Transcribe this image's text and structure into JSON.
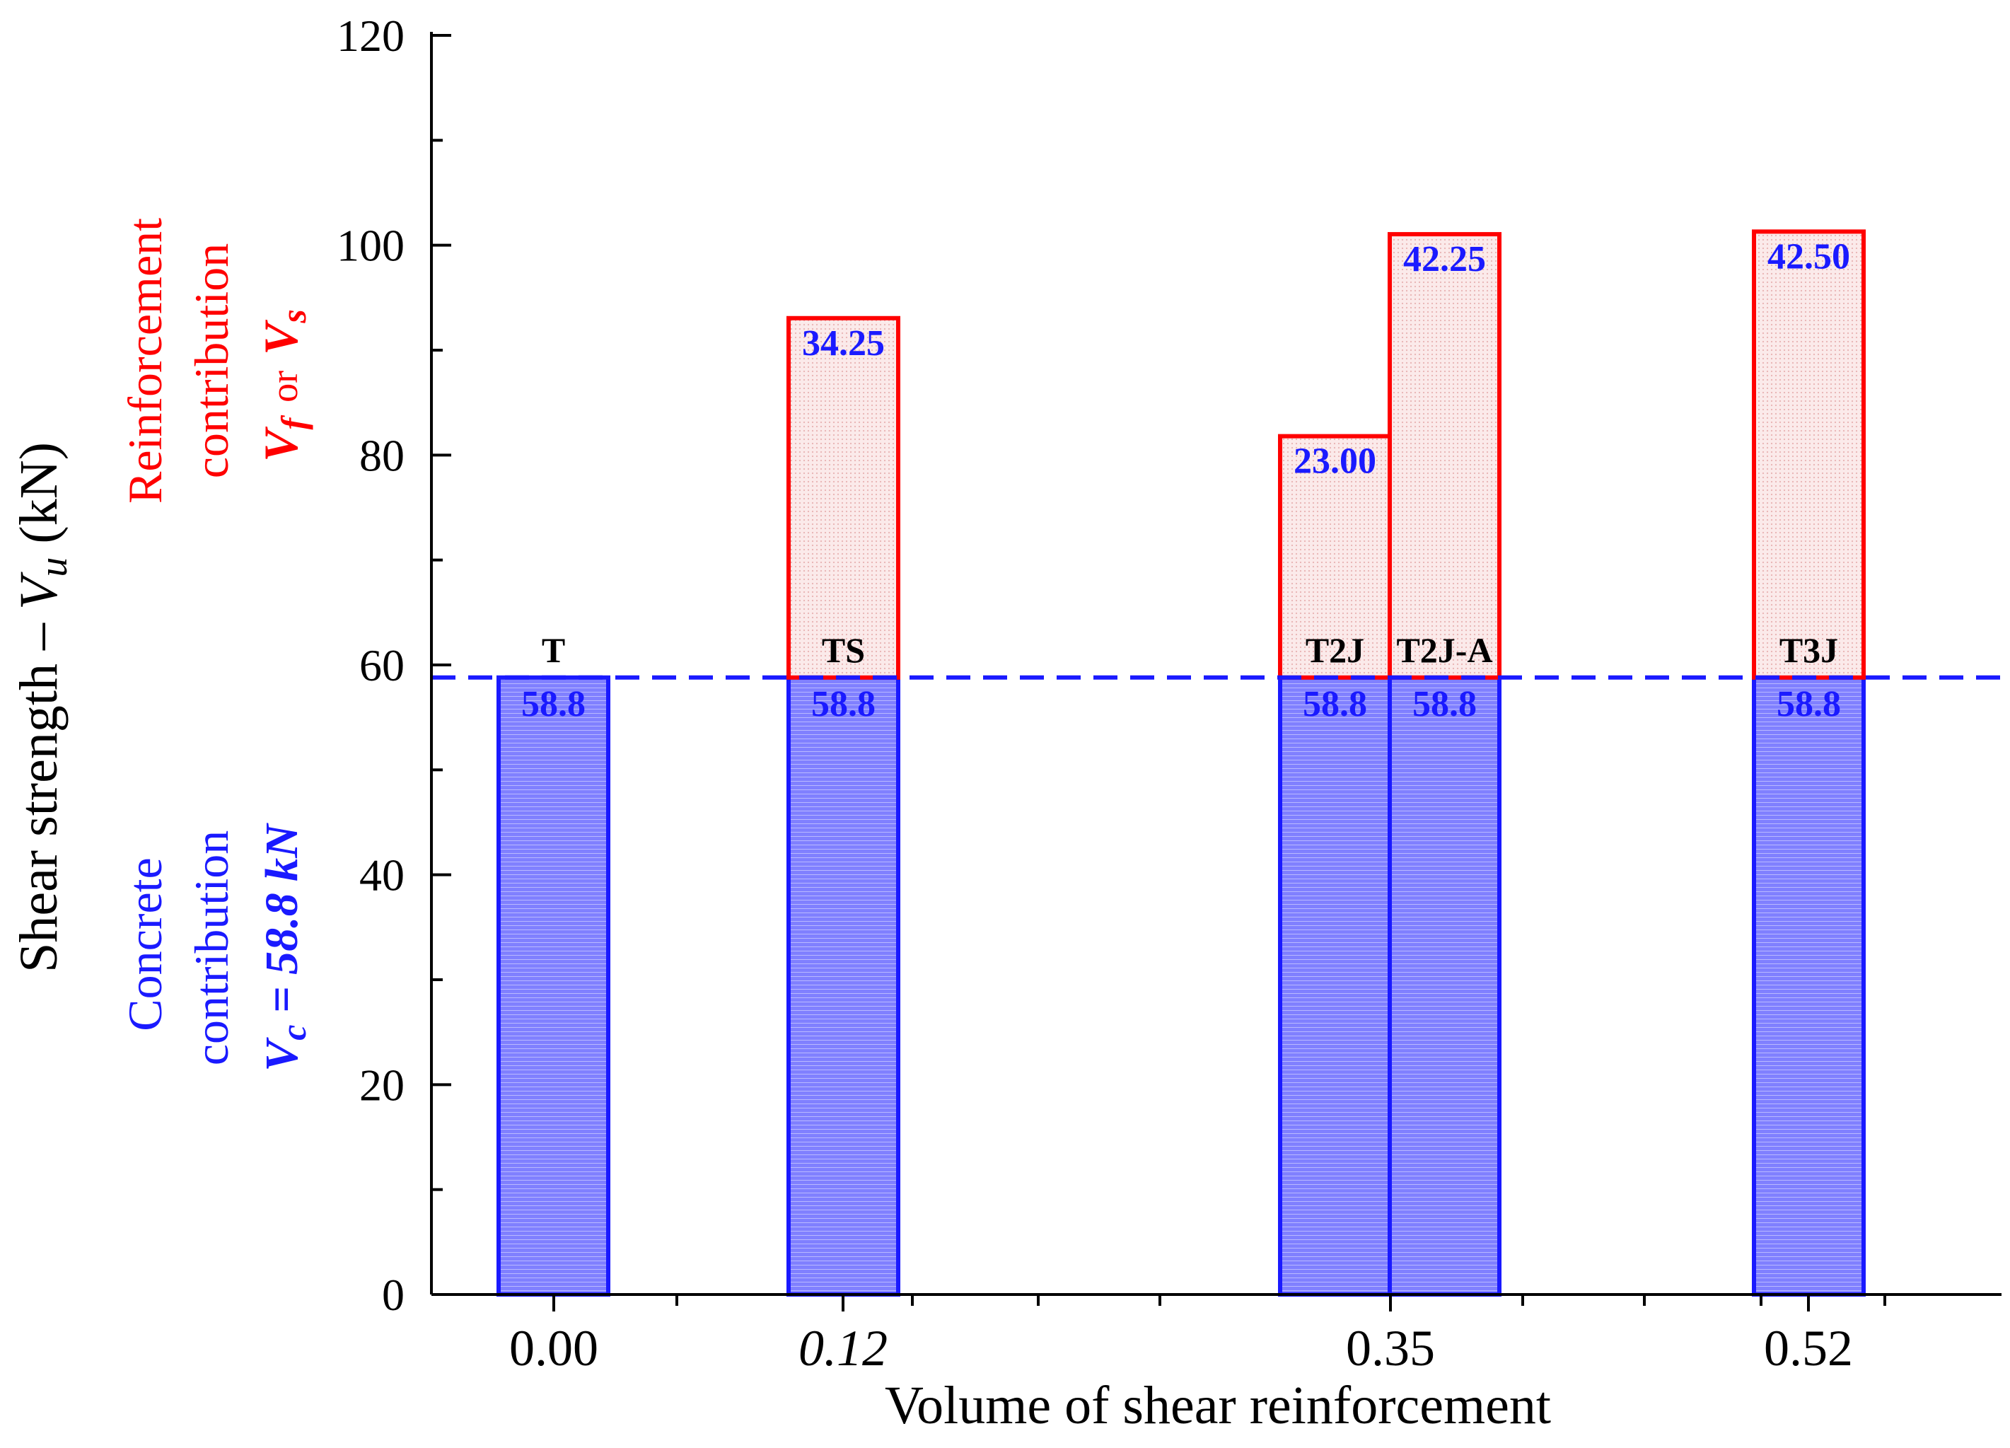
{
  "chart_data": {
    "type": "bar",
    "stacked": true,
    "xlabel": "Volume of shear reinforcement",
    "ylabel": {
      "prefix": "Shear strength – ",
      "var": "V",
      "sub": "u",
      "unit": " (kN)"
    },
    "ylim": [
      0,
      120
    ],
    "yticks": [
      "0",
      "20",
      "40",
      "60",
      "80",
      "100",
      "120"
    ],
    "x_tick_labels": [
      {
        "x": 0.0,
        "label": "0.00",
        "italic": false
      },
      {
        "x": 0.12,
        "label": "0.12",
        "italic": true
      },
      {
        "x": 0.35,
        "label": "0.35",
        "italic": false
      },
      {
        "x": 0.52,
        "label": "0.52",
        "italic": false
      }
    ],
    "bars": [
      {
        "specimen": "T",
        "x": 0.0,
        "concrete": 58.8,
        "reinforcement": 0,
        "concrete_label": "58.8",
        "reinforcement_label": ""
      },
      {
        "specimen": "TS",
        "x": 0.12,
        "concrete": 58.8,
        "reinforcement": 34.25,
        "concrete_label": "58.8",
        "reinforcement_label": "34.25"
      },
      {
        "specimen": "T2J",
        "x": 0.35,
        "concrete": 58.8,
        "reinforcement": 23.0,
        "concrete_label": "58.8",
        "reinforcement_label": "23.00"
      },
      {
        "specimen": "T2J-A",
        "x": 0.35,
        "concrete": 58.8,
        "reinforcement": 42.25,
        "concrete_label": "58.8",
        "reinforcement_label": "42.25"
      },
      {
        "specimen": "T3J",
        "x": 0.52,
        "concrete": 58.8,
        "reinforcement": 42.5,
        "concrete_label": "58.8",
        "reinforcement_label": "42.50"
      }
    ],
    "reference_line": {
      "y": 58.8,
      "style": "dashed"
    },
    "annotations": {
      "reinforcement": {
        "line1": "Reinforcement",
        "line2": "contribution",
        "v1": "V",
        "s1": "f",
        "or": "or",
        "v2": "V",
        "s2": "s"
      },
      "concrete": {
        "line1": "Concrete",
        "line2": "contribution",
        "v": "V",
        "s": "c",
        "value": " = 58.8 kN"
      }
    },
    "colors": {
      "concrete_fill": "#8080ff",
      "concrete_edge": "#1a1aff",
      "reinf_fill": "#f6dede",
      "reinf_edge": "#ff0000",
      "value_text": "#1a1aff",
      "axis": "#000000",
      "annotation_red": "#ff0000",
      "annotation_blue": "#1a1aff"
    }
  }
}
